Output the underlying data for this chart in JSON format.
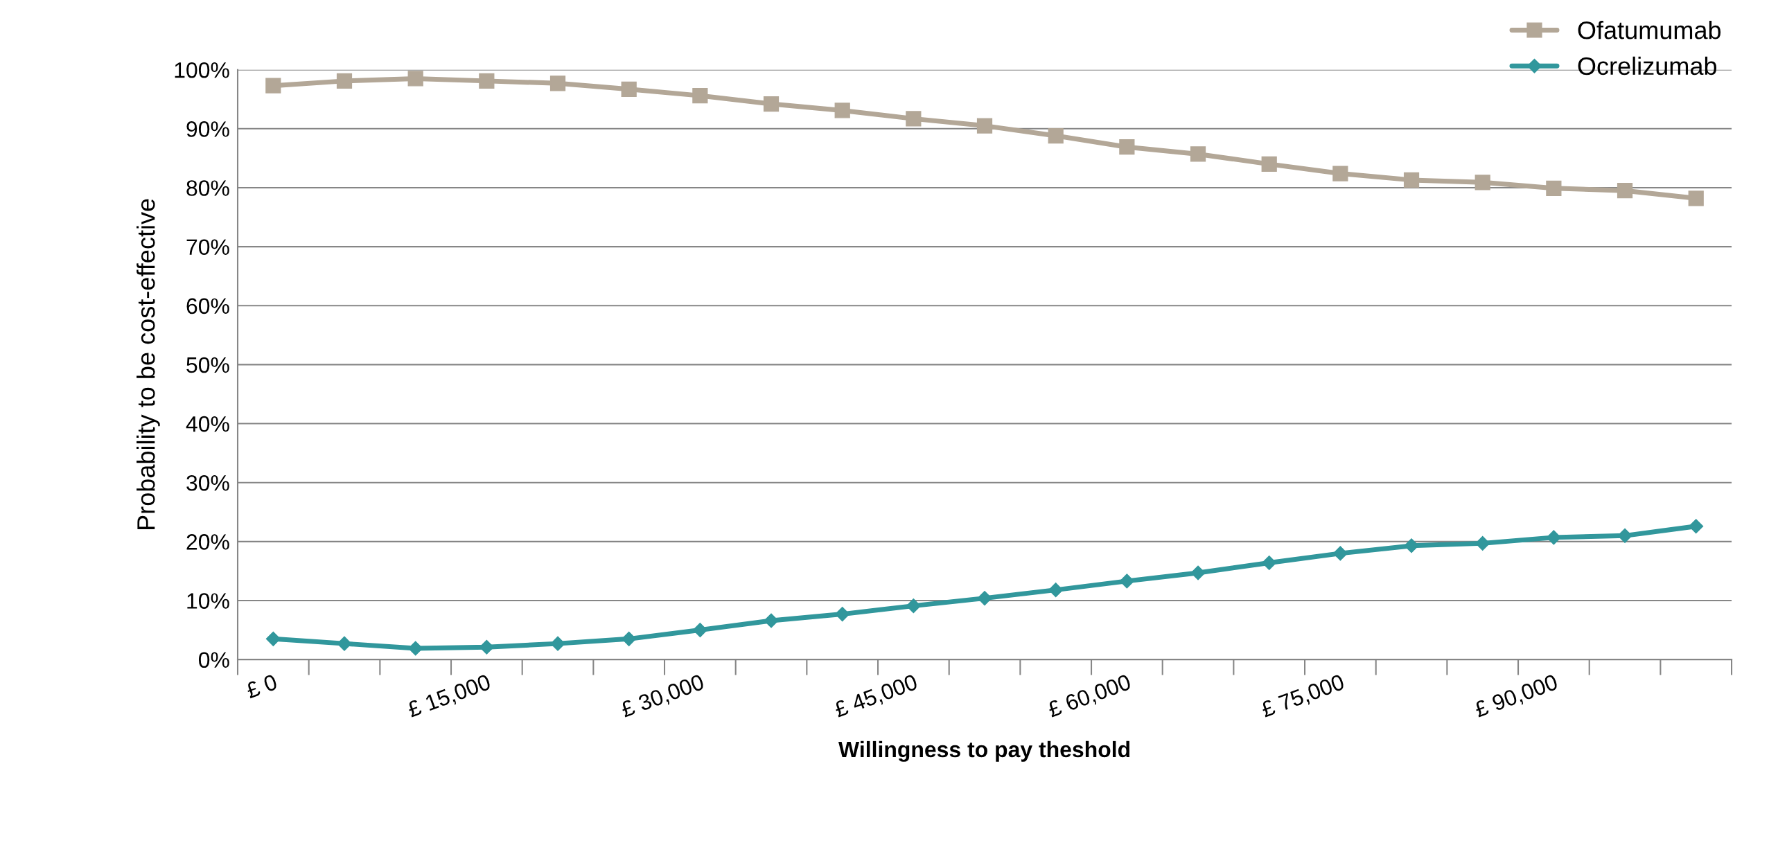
{
  "chart_data": {
    "type": "line",
    "xlabel": "Willingness to pay theshold",
    "ylabel": "Probability to be cost-effective",
    "categories": [
      "£ 0",
      null,
      null,
      "£ 15,000",
      null,
      null,
      "£ 30,000",
      null,
      null,
      "£ 45,000",
      null,
      null,
      "£ 60,000",
      null,
      null,
      "£ 75,000",
      null,
      null,
      "£ 90,000",
      null,
      null
    ],
    "series": [
      {
        "name": "Ofatumumab",
        "color": "#b3a797",
        "marker": "square",
        "values": [
          97.3,
          98.1,
          98.5,
          98.1,
          97.7,
          96.7,
          95.6,
          94.2,
          93.1,
          91.7,
          90.5,
          88.8,
          86.9,
          85.7,
          84.0,
          82.4,
          81.3,
          80.9,
          79.9,
          79.5,
          78.2
        ]
      },
      {
        "name": "Ocrelizumab",
        "color": "#31979c",
        "marker": "diamond",
        "values": [
          3.5,
          2.7,
          1.9,
          2.1,
          2.7,
          3.5,
          5.0,
          6.6,
          7.7,
          9.1,
          10.4,
          11.8,
          13.3,
          14.7,
          16.4,
          18.0,
          19.3,
          19.7,
          20.7,
          21.0,
          22.6
        ]
      }
    ],
    "ylim": [
      0,
      100
    ],
    "yticks": [
      {
        "value": 0,
        "label": "0%"
      },
      {
        "value": 10,
        "label": "10%"
      },
      {
        "value": 20,
        "label": "20%"
      },
      {
        "value": 30,
        "label": "30%"
      },
      {
        "value": 40,
        "label": "40%"
      },
      {
        "value": 50,
        "label": "50%"
      },
      {
        "value": 60,
        "label": "60%"
      },
      {
        "value": 70,
        "label": "70%"
      },
      {
        "value": 80,
        "label": "80%"
      },
      {
        "value": 90,
        "label": "90%"
      },
      {
        "value": 100,
        "label": "100%"
      }
    ],
    "grid": "y",
    "legend": "top right",
    "line_style": "solid"
  }
}
